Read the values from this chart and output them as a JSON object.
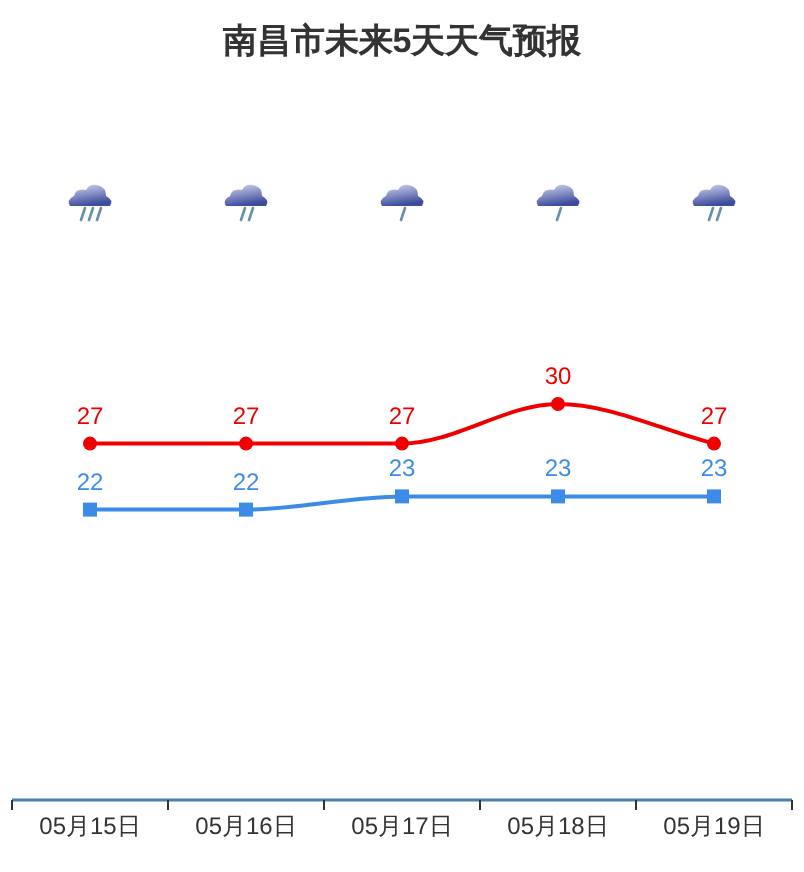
{
  "chart_data": {
    "type": "line",
    "title": "南昌市未来5天天气预报",
    "categories": [
      "05月15日",
      "05月16日",
      "05月17日",
      "05月18日",
      "05月19日"
    ],
    "series": [
      {
        "color": "#ee0000",
        "marker": "circle",
        "values": [
          27,
          27,
          27,
          30,
          27
        ]
      },
      {
        "color": "#3c8ce7",
        "marker": "square",
        "values": [
          22,
          22,
          23,
          23,
          23
        ]
      }
    ],
    "tick_labels": "x",
    "data_labels": true,
    "line_style": "solid"
  }
}
